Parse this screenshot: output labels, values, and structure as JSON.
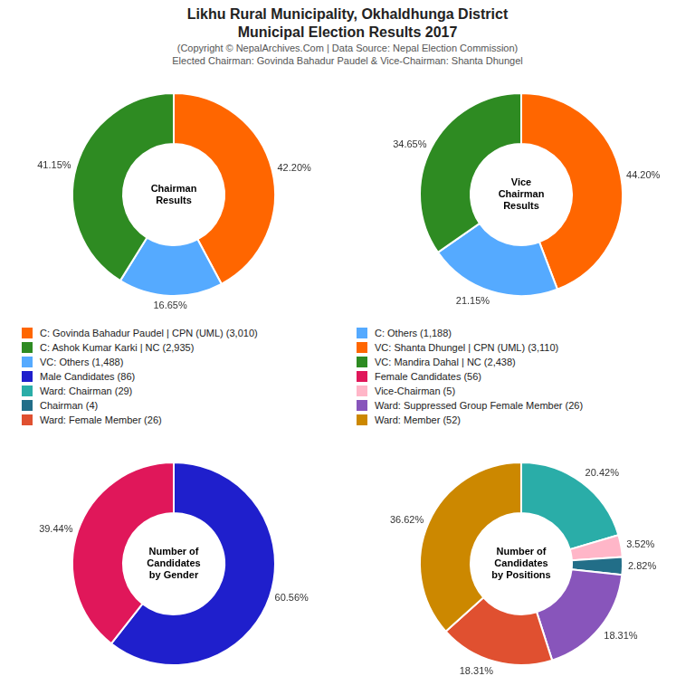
{
  "title": [
    "Likhu Rural Municipality, Okhaldhunga District",
    "Municipal Election Results 2017"
  ],
  "subtitle": [
    "(Copyright © NepalArchives.Com | Data Source: Nepal Election Commission)",
    "Elected Chairman: Govinda Bahadur Paudel & Vice-Chairman: Shanta Dhungel"
  ],
  "chart_data": [
    {
      "type": "doughnut",
      "title": "Chairman\nResults",
      "categories": [
        "C: Govinda Bahadur Paudel | CPN (UML) (3,010)",
        "C: Others (1,188)",
        "C: Ashok Kumar Karki | NC (2,935)"
      ],
      "values": [
        42.2,
        16.65,
        41.15
      ],
      "value_labels": [
        "42.20%",
        "16.65%",
        "41.15%"
      ],
      "colors": [
        "#FF6600",
        "#55AAFF",
        "#2E8B22"
      ],
      "data_labels": true
    },
    {
      "type": "doughnut",
      "title": "Vice\nChairman\nResults",
      "categories": [
        "VC: Shanta Dhungel | CPN (UML) (3,110)",
        "VC: Others (1,488)",
        "VC: Mandira Dahal | NC (2,438)"
      ],
      "values": [
        44.2,
        21.15,
        34.65
      ],
      "value_labels": [
        "44.20%",
        "21.15%",
        "34.65%"
      ],
      "colors": [
        "#FF6600",
        "#55AAFF",
        "#2E8B22"
      ],
      "data_labels": true
    },
    {
      "type": "doughnut",
      "title": "Number of\nCandidates\nby Gender",
      "categories": [
        "Male Candidates (86)",
        "Female Candidates (56)"
      ],
      "values": [
        60.56,
        39.44
      ],
      "value_labels": [
        "60.56%",
        "39.44%"
      ],
      "colors": [
        "#1F1FCC",
        "#E0175A"
      ],
      "data_labels": true
    },
    {
      "type": "doughnut",
      "title": "Number of\nCandidates\nby Positions",
      "categories": [
        "Ward: Chairman (29)",
        "Vice-Chairman (5)",
        "Chairman (4)",
        "Ward: Suppressed Group Female Member (26)",
        "Ward: Female Member (26)",
        "Ward: Member (52)"
      ],
      "values": [
        20.42,
        3.52,
        2.82,
        18.31,
        18.31,
        36.62
      ],
      "value_labels": [
        "20.42%",
        "3.52%",
        "2.82%",
        "18.31%",
        "18.31%",
        "36.62%"
      ],
      "colors": [
        "#2AADA8",
        "#FFB6C8",
        "#226E88",
        "#8855BB",
        "#E05030",
        "#CC8800"
      ],
      "data_labels": true
    }
  ]
}
